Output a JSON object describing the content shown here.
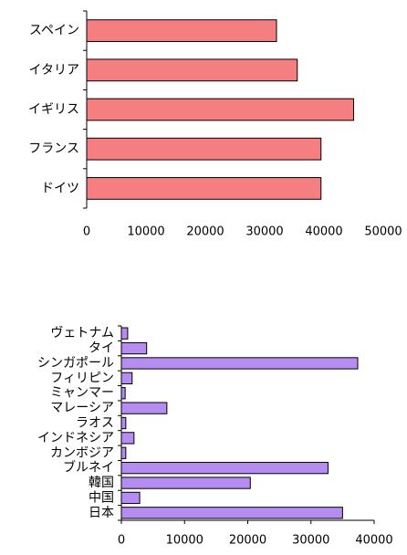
{
  "chart_data": [
    {
      "type": "bar",
      "orientation": "horizontal",
      "categories": [
        "スペイン",
        "イタリア",
        "イギリス",
        "フランス",
        "ドイツ"
      ],
      "values": [
        32000,
        35500,
        45000,
        39500,
        39500
      ],
      "color": "#f47e80",
      "xlim": [
        0,
        50000
      ],
      "xticks": [
        0,
        10000,
        20000,
        30000,
        40000,
        50000
      ]
    },
    {
      "type": "bar",
      "orientation": "horizontal",
      "categories": [
        "ヴェトナム",
        "タイ",
        "シンガポール",
        "フィリピン",
        "ミャンマー",
        "マレーシア",
        "ラオス",
        "インドネシア",
        "カンボジア",
        "ブルネイ",
        "韓国",
        "中国",
        "日本"
      ],
      "values": [
        1000,
        4000,
        37400,
        1700,
        600,
        7200,
        700,
        2000,
        700,
        32700,
        20400,
        2900,
        35000
      ],
      "color": "#b58df0",
      "xlim": [
        0,
        40000
      ],
      "xticks": [
        0,
        10000,
        20000,
        30000,
        40000
      ]
    }
  ]
}
